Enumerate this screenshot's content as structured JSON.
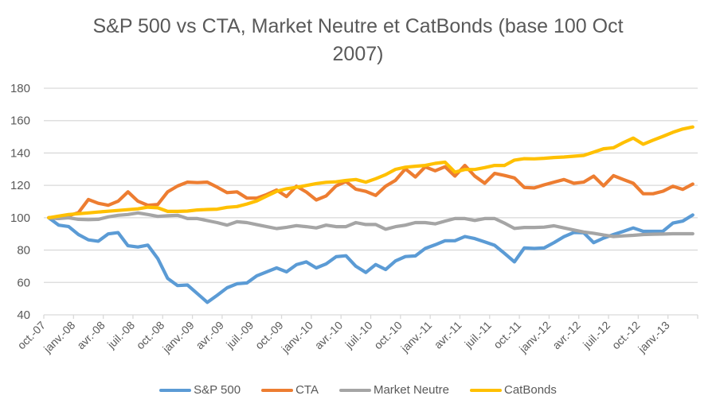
{
  "chart_data": {
    "type": "line",
    "title": "S&P 500 vs CTA, Market Neutre et CatBonds (base 100 Oct 2007)",
    "title_lines": [
      "S&P 500 vs CTA, Market Neutre et CatBonds (base 100 Oct",
      "2007)"
    ],
    "xlabel": "",
    "ylabel": "",
    "ylim": [
      40,
      180
    ],
    "yticks": [
      40,
      60,
      80,
      100,
      120,
      140,
      160,
      180
    ],
    "grid": true,
    "legend_position": "bottom",
    "x_start": "oct.-07",
    "x_frequency": "monthly",
    "x_tick_labels": [
      "oct.-07",
      "janv.-08",
      "avr.-08",
      "juil.-08",
      "oct.-08",
      "janv.-09",
      "avr.-09",
      "juil.-09",
      "oct.-09",
      "janv.-10",
      "avr.-10",
      "juil.-10",
      "oct.-10",
      "janv.-11",
      "avr.-11",
      "juil.-11",
      "oct.-11",
      "janv.-12",
      "avr.-12",
      "juil.-12",
      "oct.-12",
      "janv.-13"
    ],
    "x_tick_every": 3,
    "series": [
      {
        "name": "S&P 500",
        "color": "#5b9bd5",
        "values": [
          100,
          95.4,
          94.6,
          89.6,
          86.3,
          85.5,
          90.0,
          90.8,
          82.7,
          81.9,
          83.1,
          74.8,
          62.5,
          58.1,
          58.4,
          53.1,
          47.7,
          52.1,
          56.7,
          59.2,
          59.7,
          64.1,
          66.6,
          69.0,
          66.6,
          71.0,
          72.7,
          69.0,
          71.5,
          75.9,
          76.5,
          70.0,
          66.2,
          71.1,
          68.0,
          73.3,
          76.0,
          76.4,
          81.0,
          83.3,
          85.8,
          85.8,
          88.4,
          87.1,
          85.1,
          83.0,
          78.0,
          72.7,
          81.3,
          81.0,
          81.3,
          84.6,
          88.3,
          90.9,
          90.7,
          84.6,
          87.4,
          89.6,
          91.6,
          93.7,
          91.6,
          91.6,
          91.7,
          96.7,
          97.9,
          101.7
        ]
      },
      {
        "name": "CTA",
        "color": "#ed7d31",
        "values": [
          100,
          99.5,
          101.2,
          103.1,
          111.3,
          108.9,
          107.7,
          110.2,
          116.0,
          110.2,
          107.7,
          108.2,
          116.0,
          119.6,
          122.0,
          121.7,
          122.0,
          118.9,
          115.5,
          116.0,
          112.1,
          112.1,
          114.3,
          117.1,
          113.1,
          119.5,
          115.9,
          111.0,
          113.5,
          119.7,
          122.4,
          117.6,
          116.3,
          113.8,
          119.5,
          123.1,
          130.2,
          125.2,
          131.4,
          129.0,
          131.5,
          125.7,
          132.3,
          125.7,
          121.3,
          127.4,
          126.1,
          124.6,
          118.7,
          118.4,
          120.3,
          122.0,
          123.6,
          121.3,
          122.0,
          125.7,
          119.7,
          126.0,
          123.6,
          121.3,
          114.8,
          114.8,
          116.4,
          119.5,
          117.5,
          120.8
        ]
      },
      {
        "name": "Market Neutre",
        "color": "#a5a5a5",
        "values": [
          100,
          99.5,
          100,
          99.0,
          98.8,
          99.0,
          100.5,
          101.5,
          102.0,
          103.0,
          102.0,
          100.8,
          101.2,
          101.5,
          99.5,
          99.5,
          98.2,
          97.0,
          95.4,
          97.5,
          97.0,
          95.7,
          94.5,
          93.3,
          94.1,
          95.1,
          94.5,
          93.7,
          95.4,
          94.5,
          94.5,
          97.0,
          95.8,
          95.8,
          92.9,
          94.5,
          95.4,
          97.0,
          97.0,
          96.2,
          97.9,
          99.5,
          99.5,
          98.3,
          99.5,
          99.5,
          96.7,
          93.4,
          94.0,
          94.0,
          94.2,
          95.0,
          93.7,
          92.4,
          91.2,
          90.4,
          89.3,
          88.4,
          88.8,
          89.1,
          89.6,
          89.8,
          89.9,
          90.1,
          90.1,
          90.1
        ]
      },
      {
        "name": "CatBonds",
        "color": "#ffc000",
        "values": [
          100,
          101.0,
          102.0,
          102.5,
          103.0,
          103.5,
          104.0,
          104.5,
          105.0,
          105.5,
          106.5,
          106.1,
          103.9,
          103.9,
          104.1,
          104.8,
          105.1,
          105.3,
          106.4,
          106.9,
          108.5,
          110.4,
          113.4,
          116.3,
          117.9,
          118.8,
          119.9,
          121.1,
          121.9,
          122.2,
          123.0,
          123.6,
          122.0,
          124.1,
          126.6,
          129.9,
          131.2,
          131.8,
          132.3,
          133.6,
          134.3,
          128.2,
          129.8,
          129.8,
          131.0,
          132.3,
          132.3,
          135.6,
          136.5,
          136.4,
          136.7,
          137.2,
          137.5,
          138.0,
          138.5,
          140.5,
          142.6,
          143.2,
          146.4,
          149.2,
          145.4,
          147.9,
          150.3,
          152.8,
          154.8,
          156.1
        ]
      }
    ]
  }
}
